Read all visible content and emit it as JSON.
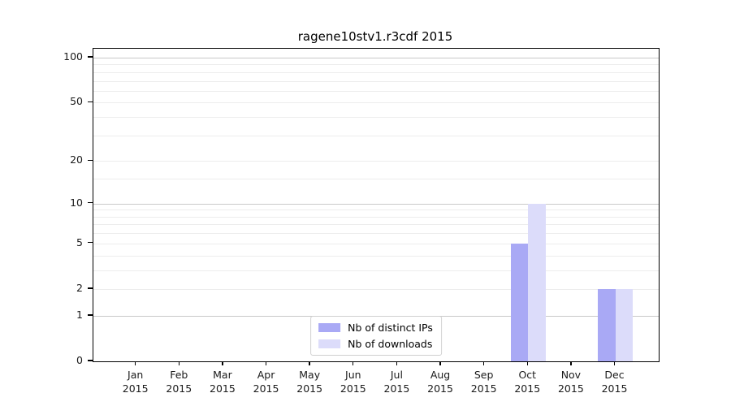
{
  "chart_data": {
    "type": "bar",
    "title": "ragene10stv1.r3cdf 2015",
    "categories": [
      "Jan",
      "Feb",
      "Mar",
      "Apr",
      "May",
      "Jun",
      "Jul",
      "Aug",
      "Sep",
      "Oct",
      "Nov",
      "Dec"
    ],
    "category_year": "2015",
    "series": [
      {
        "name": "Nb of distinct IPs",
        "color": "#a9a9f5",
        "values": [
          0,
          0,
          0,
          0,
          0,
          0,
          0,
          0,
          0,
          5,
          0,
          2
        ]
      },
      {
        "name": "Nb of downloads",
        "color": "#dcdcfa",
        "values": [
          0,
          0,
          0,
          0,
          0,
          0,
          0,
          0,
          0,
          10,
          0,
          2
        ]
      }
    ],
    "y_axis": {
      "scale": "log1p",
      "ticks": [
        0,
        1,
        2,
        5,
        10,
        20,
        50,
        100
      ],
      "max": 114.6,
      "major_gridlines": [
        1,
        10,
        100
      ],
      "minor_gridlines": [
        2,
        3,
        4,
        5,
        6,
        7,
        8,
        9,
        15,
        20,
        30,
        40,
        50,
        60,
        70,
        80,
        90
      ]
    },
    "legend": {
      "entries": [
        "Nb of distinct IPs",
        "Nb of downloads"
      ],
      "position": "lower center"
    },
    "colors": {
      "major_grid": "#c9c9c9",
      "minor_grid": "#ededed",
      "spine": "#000000",
      "background": "#ffffff"
    }
  }
}
